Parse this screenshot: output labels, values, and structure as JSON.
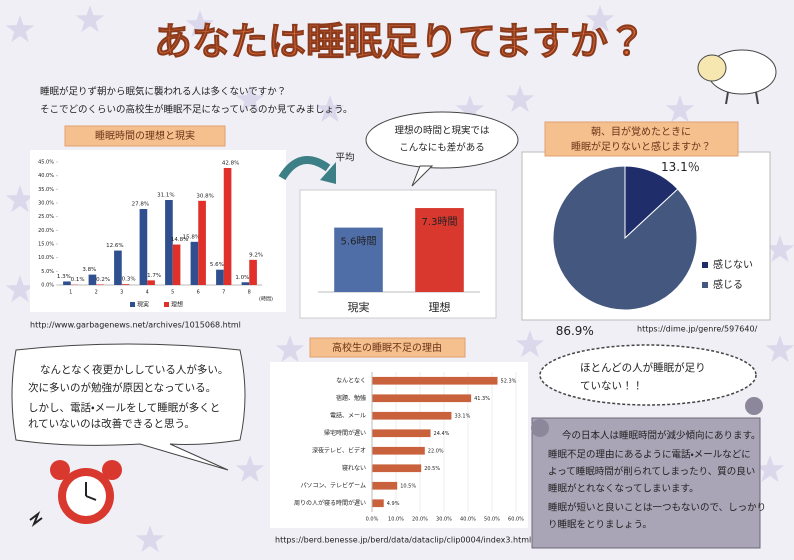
{
  "header": {
    "title": "あなたは睡眠足りてますか？"
  },
  "intro": [
    "睡眠が足りず朝から眠気に襲われる人は多くないですか？",
    "そこでどのくらいの高校生が睡眠不足になっているのか見てみましょう。"
  ],
  "callouts": {
    "gap": [
      "理想の時間と現実では",
      "こんなにも差がある"
    ],
    "average": "平均",
    "most": [
      "ほとんどの人が睡眠が足り",
      "ていない！！"
    ],
    "opinion": [
      "なんとなく夜更かししている人が多い。",
      "次に多いのが勉強が原因となっている。",
      "しかし、電話・メールをして睡眠が多くと",
      "れていないのは改善できると思う。"
    ],
    "summary": [
      "今の日本人は睡眠時間が減少傾向にあります。",
      "睡眠不足の理由にあるように電話・メールなどに",
      "よって睡眠時間が削られてしまったり、質の良い",
      "睡眠がとれなくなってしまいます。",
      "睡眠が短いと良いことは一つもないので、しっかり",
      "り睡眠をとりましょう。"
    ]
  },
  "sources": [
    "http://www.garbagenews.net/archives/1015068.html",
    "https://dime.jp/genre/597640/",
    "https://berd.benesse.jp/berd/data/dataclip/clip0004/index3.html"
  ],
  "chart_data": [
    {
      "type": "bar",
      "title": "睡眠時間の理想と現実",
      "categories": [
        "1",
        "2",
        "3",
        "4",
        "5",
        "6",
        "7",
        "8"
      ],
      "xlabel": "(時間)",
      "series": [
        {
          "name": "現実",
          "color": "#2f4f8f",
          "values": [
            1.3,
            3.8,
            12.6,
            27.8,
            31.1,
            15.8,
            5.6,
            1.0
          ],
          "value_labels": [
            "1.3%",
            "3.8%",
            "12.6%",
            "27.8%",
            "31.1%",
            "15.8%",
            "5.6%",
            "1.0%"
          ]
        },
        {
          "name": "理想",
          "color": "#e0302a",
          "values": [
            0.1,
            0.2,
            0.3,
            1.7,
            14.8,
            30.8,
            42.8,
            9.2
          ],
          "value_labels": [
            "0.1%",
            "0.2%",
            "0.3%",
            "1.7%",
            "14.8%",
            "30.8%",
            "42.8%",
            "9.2%"
          ]
        }
      ],
      "ylim": [
        0,
        45
      ],
      "yticks": [
        {
          "value": 0,
          "label": "0.0%"
        },
        {
          "value": 5,
          "label": "5.0%"
        },
        {
          "value": 10,
          "label": "10.0%"
        },
        {
          "value": 15,
          "label": "15.0%"
        },
        {
          "value": 20,
          "label": "20.0%"
        },
        {
          "value": 25,
          "label": "25.0%"
        },
        {
          "value": 30,
          "label": "30.0%"
        },
        {
          "value": 35,
          "label": "35.0%"
        },
        {
          "value": 40,
          "label": "40.0%"
        },
        {
          "value": 45,
          "label": "45.0%"
        }
      ],
      "legend": "bottom"
    },
    {
      "type": "bar",
      "categories": [
        "現実",
        "理想"
      ],
      "values": [
        5.6,
        7.3
      ],
      "value_labels": [
        "5.6時間",
        "7.3時間"
      ],
      "colors": [
        "#4f6ea8",
        "#d9382f"
      ],
      "ylim": [
        0,
        8
      ]
    },
    {
      "type": "pie",
      "title": [
        "朝、目が覚めたときに",
        "睡眠が足りないと感じますか？"
      ],
      "categories": [
        "感じない",
        "感じる"
      ],
      "values": [
        13.1,
        86.9
      ],
      "value_labels": [
        "13.1％",
        "86.9%"
      ],
      "colors": [
        "#1f2d6b",
        "#44577f"
      ],
      "legend": "right"
    },
    {
      "type": "hbar",
      "title": "高校生の睡眠不足の理由",
      "categories": [
        "なんとなく",
        "宿題、勉強",
        "電話、メール",
        "帰宅時間が遅い",
        "深夜テレビ、ビデオ",
        "寝れない",
        "パソコン、テレビゲーム",
        "周りの人が寝る時間が遅い"
      ],
      "values": [
        52.3,
        41.3,
        33.1,
        24.4,
        22.0,
        20.5,
        10.5,
        4.9
      ],
      "value_labels": [
        "52.3%",
        "41.3%",
        "33.1%",
        "24.4%",
        "22.0%",
        "20.5%",
        "10.5%",
        "4.9%"
      ],
      "color": "#c9623c",
      "xlim": [
        0,
        60
      ],
      "xticks": [
        {
          "value": 0,
          "label": "0.0%"
        },
        {
          "value": 10,
          "label": "10.0%"
        },
        {
          "value": 20,
          "label": "20.0%"
        },
        {
          "value": 30,
          "label": "30.0%"
        },
        {
          "value": 40,
          "label": "40.0%"
        },
        {
          "value": 50,
          "label": "50.0%"
        },
        {
          "value": 60,
          "label": "60.0%"
        }
      ]
    }
  ]
}
